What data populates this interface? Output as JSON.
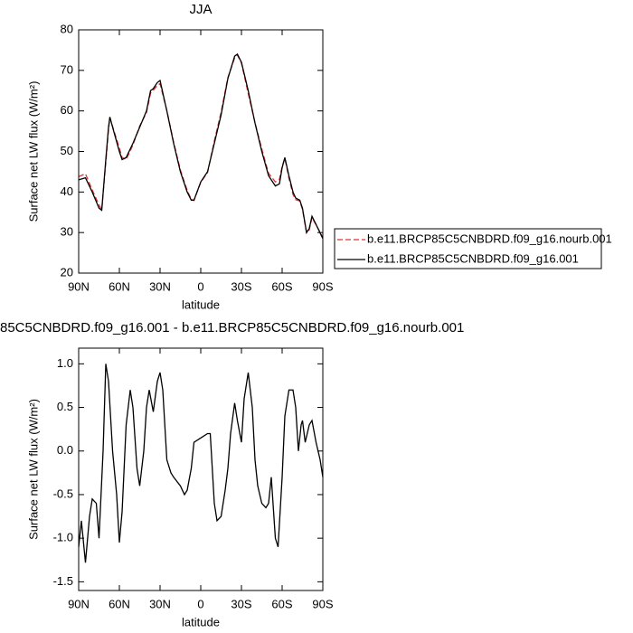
{
  "chart_data": [
    {
      "type": "line",
      "title": "JJA",
      "xlabel": "latitude",
      "ylabel": "Surface net LW flux (W/m²)",
      "xlim": [
        90,
        -90
      ],
      "ylim": [
        20,
        80
      ],
      "xticks": [
        {
          "value": 90,
          "label": "90N"
        },
        {
          "value": 60,
          "label": "60N"
        },
        {
          "value": 30,
          "label": "30N"
        },
        0,
        {
          "value": -30,
          "label": "30S"
        },
        {
          "value": -60,
          "label": "60S"
        },
        {
          "value": -90,
          "label": "90S"
        }
      ],
      "yticks": [
        20,
        30,
        40,
        50,
        60,
        70,
        80
      ],
      "x": [
        90,
        85,
        80,
        75,
        73,
        70,
        68,
        67,
        65,
        60,
        58,
        55,
        50,
        45,
        40,
        37,
        35,
        32,
        30,
        25,
        20,
        15,
        10,
        7,
        5,
        0,
        -5,
        -10,
        -15,
        -20,
        -25,
        -27,
        -30,
        -35,
        -40,
        -45,
        -50,
        -55,
        -58,
        -60,
        -62,
        -65,
        -68,
        -70,
        -73,
        -75,
        -78,
        -80,
        -82,
        -85,
        -90
      ],
      "legend": "right",
      "series": [
        {
          "name": "b.e11.BRCP85C5CNBDRD.f09_g16.nourb.001",
          "color": "#e03030",
          "dash": true,
          "values": [
            43.8,
            44.5,
            40.5,
            36.8,
            35.6,
            47.2,
            55.4,
            58.3,
            56.2,
            50.8,
            48.5,
            48.0,
            51.6,
            56.3,
            59.6,
            64.4,
            65.1,
            66.3,
            66.7,
            60.1,
            52.3,
            45.4,
            40.4,
            38.2,
            37.9,
            42.4,
            44.8,
            52.6,
            59.7,
            68.2,
            73.1,
            73.8,
            71.8,
            64.3,
            57.1,
            50.6,
            44.6,
            42.5,
            43.1,
            46.3,
            48.3,
            43.4,
            39.4,
            38.1,
            37.8,
            35.7,
            29.9,
            30.7,
            33.7,
            31.9,
            28.8
          ]
        },
        {
          "name": "b.e11.BRCP85C5CNBDRD.f09_g16.001",
          "color": "#000000",
          "dash": false,
          "values": [
            43,
            43.5,
            40,
            36,
            35.5,
            48,
            56,
            58.5,
            56,
            50,
            48,
            48.5,
            52,
            56,
            60,
            65,
            65.5,
            67,
            67.5,
            60,
            52,
            45,
            40,
            38,
            38,
            42.5,
            45,
            52,
            59,
            68,
            73.5,
            74,
            72,
            65,
            57,
            50,
            44,
            41.5,
            42,
            46,
            48.5,
            44,
            40,
            38.5,
            38,
            36,
            30,
            31,
            34,
            32,
            28.5
          ]
        }
      ]
    },
    {
      "type": "line",
      "title": "85C5CNBDRD.f09_g16.001 - b.e11.BRCP85C5CNBDRD.f09_g16.nourb.001",
      "xlabel": "latitude",
      "ylabel": "Surface net LW flux (W/m²)",
      "xlim": [
        90,
        -90
      ],
      "ylim": [
        -1.6,
        1.18
      ],
      "xticks": [
        {
          "value": 90,
          "label": "90N"
        },
        {
          "value": 60,
          "label": "60N"
        },
        {
          "value": 30,
          "label": "30N"
        },
        0,
        {
          "value": -30,
          "label": "30S"
        },
        {
          "value": -60,
          "label": "60S"
        },
        {
          "value": -90,
          "label": "90S"
        }
      ],
      "yticks": [
        {
          "value": 1.0,
          "label": "1.0"
        },
        0.5,
        {
          "value": 0.0,
          "label": "0.0"
        },
        -0.5,
        {
          "value": -1.0,
          "label": "-1.0"
        },
        {
          "value": -1.5,
          "label": "-1.5"
        }
      ],
      "x": [
        90,
        88,
        85,
        82,
        80,
        77,
        75,
        72,
        70,
        68,
        65,
        62,
        60,
        58,
        55,
        52,
        50,
        47,
        45,
        42,
        40,
        38,
        35,
        32,
        30,
        28,
        25,
        22,
        20,
        15,
        12,
        10,
        7,
        5,
        0,
        -5,
        -7,
        -10,
        -12,
        -15,
        -18,
        -20,
        -22,
        -25,
        -27,
        -30,
        -32,
        -35,
        -38,
        -40,
        -42,
        -45,
        -48,
        -50,
        -52,
        -55,
        -57,
        -60,
        -62,
        -65,
        -68,
        -70,
        -72,
        -74,
        -75,
        -77,
        -80,
        -82,
        -85,
        -88,
        -90
      ],
      "series": [
        {
          "color": "#000000",
          "values": [
            -1.1,
            -0.8,
            -1.28,
            -0.75,
            -0.55,
            -0.6,
            -1.0,
            0.0,
            1.0,
            0.8,
            0.0,
            -0.5,
            -1.05,
            -0.7,
            0.3,
            0.7,
            0.5,
            -0.2,
            -0.4,
            0.0,
            0.5,
            0.7,
            0.45,
            0.8,
            0.9,
            0.7,
            -0.1,
            -0.25,
            -0.3,
            -0.4,
            -0.5,
            -0.45,
            -0.2,
            0.1,
            0.15,
            0.2,
            0.2,
            -0.6,
            -0.8,
            -0.75,
            -0.45,
            -0.2,
            0.2,
            0.55,
            0.35,
            0.1,
            0.6,
            0.9,
            0.5,
            -0.1,
            -0.4,
            -0.6,
            -0.65,
            -0.6,
            -0.3,
            -1.0,
            -1.1,
            -0.3,
            0.4,
            0.7,
            0.7,
            0.5,
            0.0,
            0.3,
            0.35,
            0.1,
            0.3,
            0.35,
            0.1,
            -0.1,
            -0.3
          ]
        }
      ]
    }
  ]
}
